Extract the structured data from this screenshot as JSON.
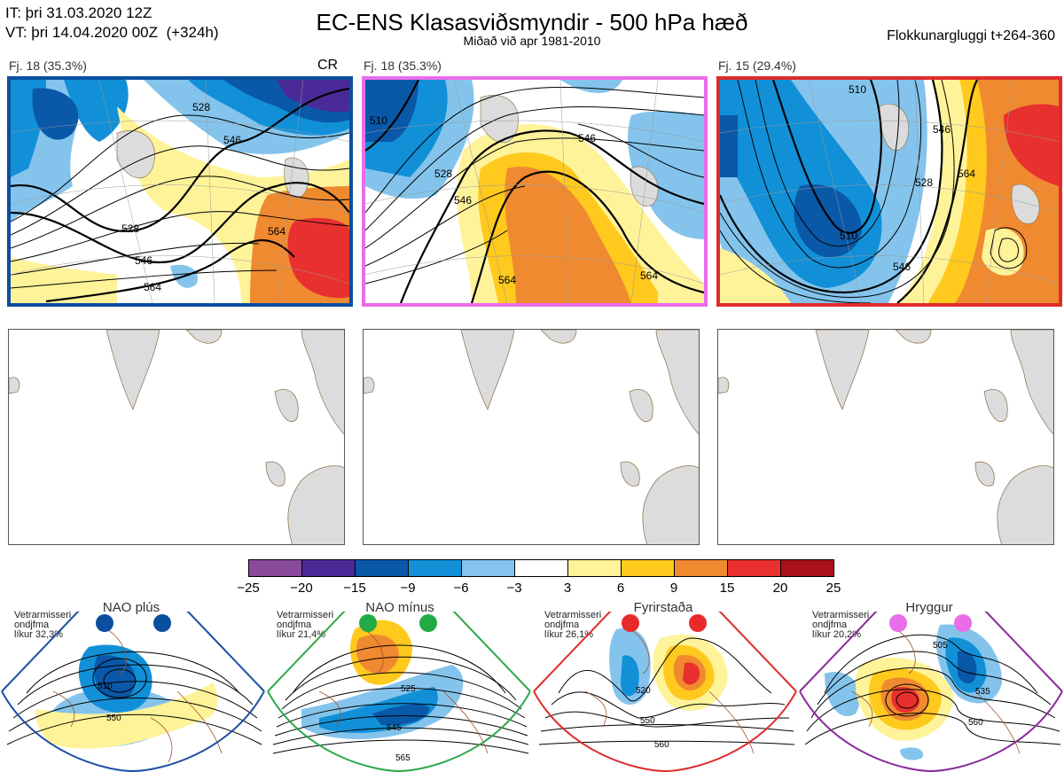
{
  "header": {
    "it_line": "IT: þri 31.03.2020 12Z",
    "vt_line": "VT: þri 14.04.2020 00Z  (+324h)",
    "title": "EC-ENS Klasasviðsmyndir - 500 hPa hæð",
    "subtitle": "Miðað við apr 1981-2010",
    "window": "Flokkunargluggi t+264-360"
  },
  "panels": [
    {
      "label": "Fj. 18 (35.3%)",
      "tag": "CR",
      "border": "#0b4fa0",
      "contours": [
        "528",
        "546",
        "528",
        "546",
        "564",
        "564"
      ]
    },
    {
      "label": "Fj. 18 (35.3%)",
      "tag": "",
      "border": "#e96de9",
      "contours": [
        "510",
        "546",
        "528",
        "546",
        "564",
        "564"
      ]
    },
    {
      "label": "Fj. 15 (29.4%)",
      "tag": "",
      "border": "#e02b2b",
      "contours": [
        "510",
        "546",
        "528",
        "546",
        "564",
        "510"
      ]
    }
  ],
  "colorbar": {
    "colors": [
      "#8a4a9c",
      "#4a2a96",
      "#0a58a8",
      "#1190d8",
      "#84c4ec",
      "#ffffff",
      "#fff39a",
      "#ffc91e",
      "#f08a30",
      "#e8302e",
      "#a8101a"
    ],
    "ticks": [
      "−25",
      "−20",
      "−15",
      "−9",
      "−6",
      "−3",
      "3",
      "6",
      "9",
      "15",
      "20",
      "25"
    ]
  },
  "regimes": [
    {
      "name": "NAO plús",
      "desc": "Vetrarmisseri\nondjfma\nlíkur 32,3%",
      "color": "#1d4fa5",
      "dot": "#0a4ea0",
      "labels": [
        "510",
        "550"
      ]
    },
    {
      "name": "NAO mínus",
      "desc": "Vetrarmisseri\nondjfma\nlíkur 21,4%",
      "color": "#2ea84a",
      "dot": "#22aa44",
      "labels": [
        "525",
        "545",
        "565"
      ]
    },
    {
      "name": "Fyrirstaða",
      "desc": "Vetrarmisseri\nondjfma\nlíkur 26,1%",
      "color": "#e02b2b",
      "dot": "#e82a2a",
      "labels": [
        "520",
        "550",
        "560"
      ]
    },
    {
      "name": "Hryggur",
      "desc": "Vetrarmisseri\nondjfma\nlíkur 20,2%",
      "color": "#8a2a9a",
      "dot": "#e96de9",
      "labels": [
        "505",
        "535",
        "560"
      ]
    }
  ]
}
